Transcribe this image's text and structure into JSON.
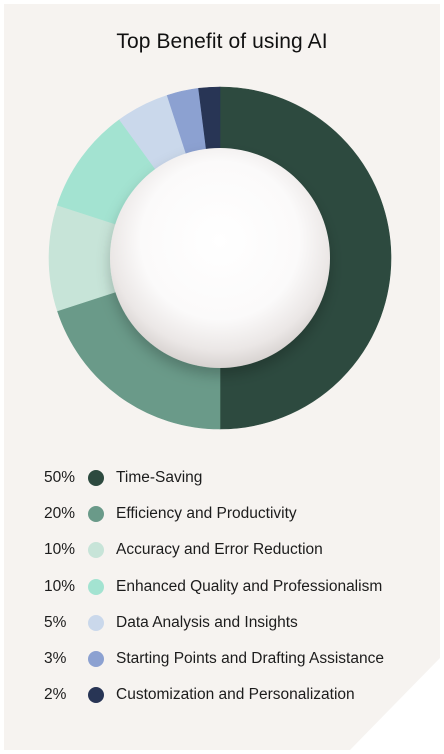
{
  "chart_data": {
    "type": "pie",
    "title": "Top Benefit of using AI",
    "categories": [
      "Time-Saving",
      "Efficiency and Productivity",
      "Accuracy and Error Reduction",
      "Enhanced Quality and Professionalism",
      "Data Analysis and Insights",
      "Starting Points and Drafting Assistance",
      "Customization and Personalization"
    ],
    "values": [
      50,
      20,
      10,
      10,
      5,
      3,
      2
    ],
    "value_labels": [
      "50%",
      "20%",
      "10%",
      "10%",
      "5%",
      "3%",
      "2%"
    ],
    "colors": [
      "#2d4a3f",
      "#6a9a89",
      "#c7e4d8",
      "#a3e3d1",
      "#cad8eb",
      "#8ca1d1",
      "#283555"
    ],
    "donut": true,
    "legend_position": "bottom"
  }
}
